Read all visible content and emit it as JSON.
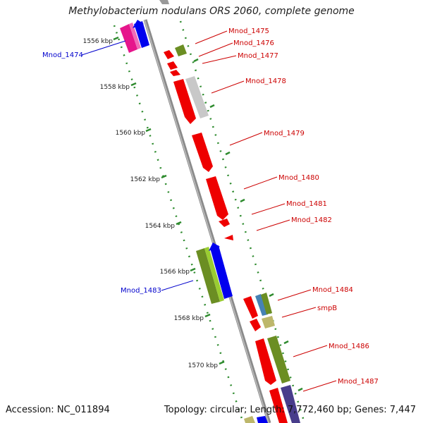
{
  "title": "Methylobacterium nodulans ORS 2060, complete genome",
  "accession": "Accession: NC_011894",
  "topology": "Topology: circular; Length: 7,772,460 bp; Genes: 7,447",
  "colors": {
    "backbone": "#8a8a8a",
    "tick": "#2e8b2e",
    "forward_label": "#cc0000",
    "reverse_label": "#0000cc"
  },
  "kbp_marks": [
    "1556 kbp",
    "1558 kbp",
    "1560 kbp",
    "1562 kbp",
    "1564 kbp",
    "1566 kbp",
    "1568 kbp",
    "1570 kbp"
  ],
  "genes": [
    {
      "label": "Mnod_1474",
      "strand": "reverse"
    },
    {
      "label": "Mnod_1475",
      "strand": "forward"
    },
    {
      "label": "Mnod_1476",
      "strand": "forward"
    },
    {
      "label": "Mnod_1477",
      "strand": "forward"
    },
    {
      "label": "Mnod_1478",
      "strand": "forward"
    },
    {
      "label": "Mnod_1479",
      "strand": "forward"
    },
    {
      "label": "Mnod_1480",
      "strand": "forward"
    },
    {
      "label": "Mnod_1481",
      "strand": "forward"
    },
    {
      "label": "Mnod_1482",
      "strand": "forward"
    },
    {
      "label": "Mnod_1483",
      "strand": "reverse"
    },
    {
      "label": "Mnod_1484",
      "strand": "forward"
    },
    {
      "label": "smpB",
      "strand": "forward"
    },
    {
      "label": "Mnod_1486",
      "strand": "forward"
    },
    {
      "label": "Mnod_1487",
      "strand": "forward"
    }
  ]
}
